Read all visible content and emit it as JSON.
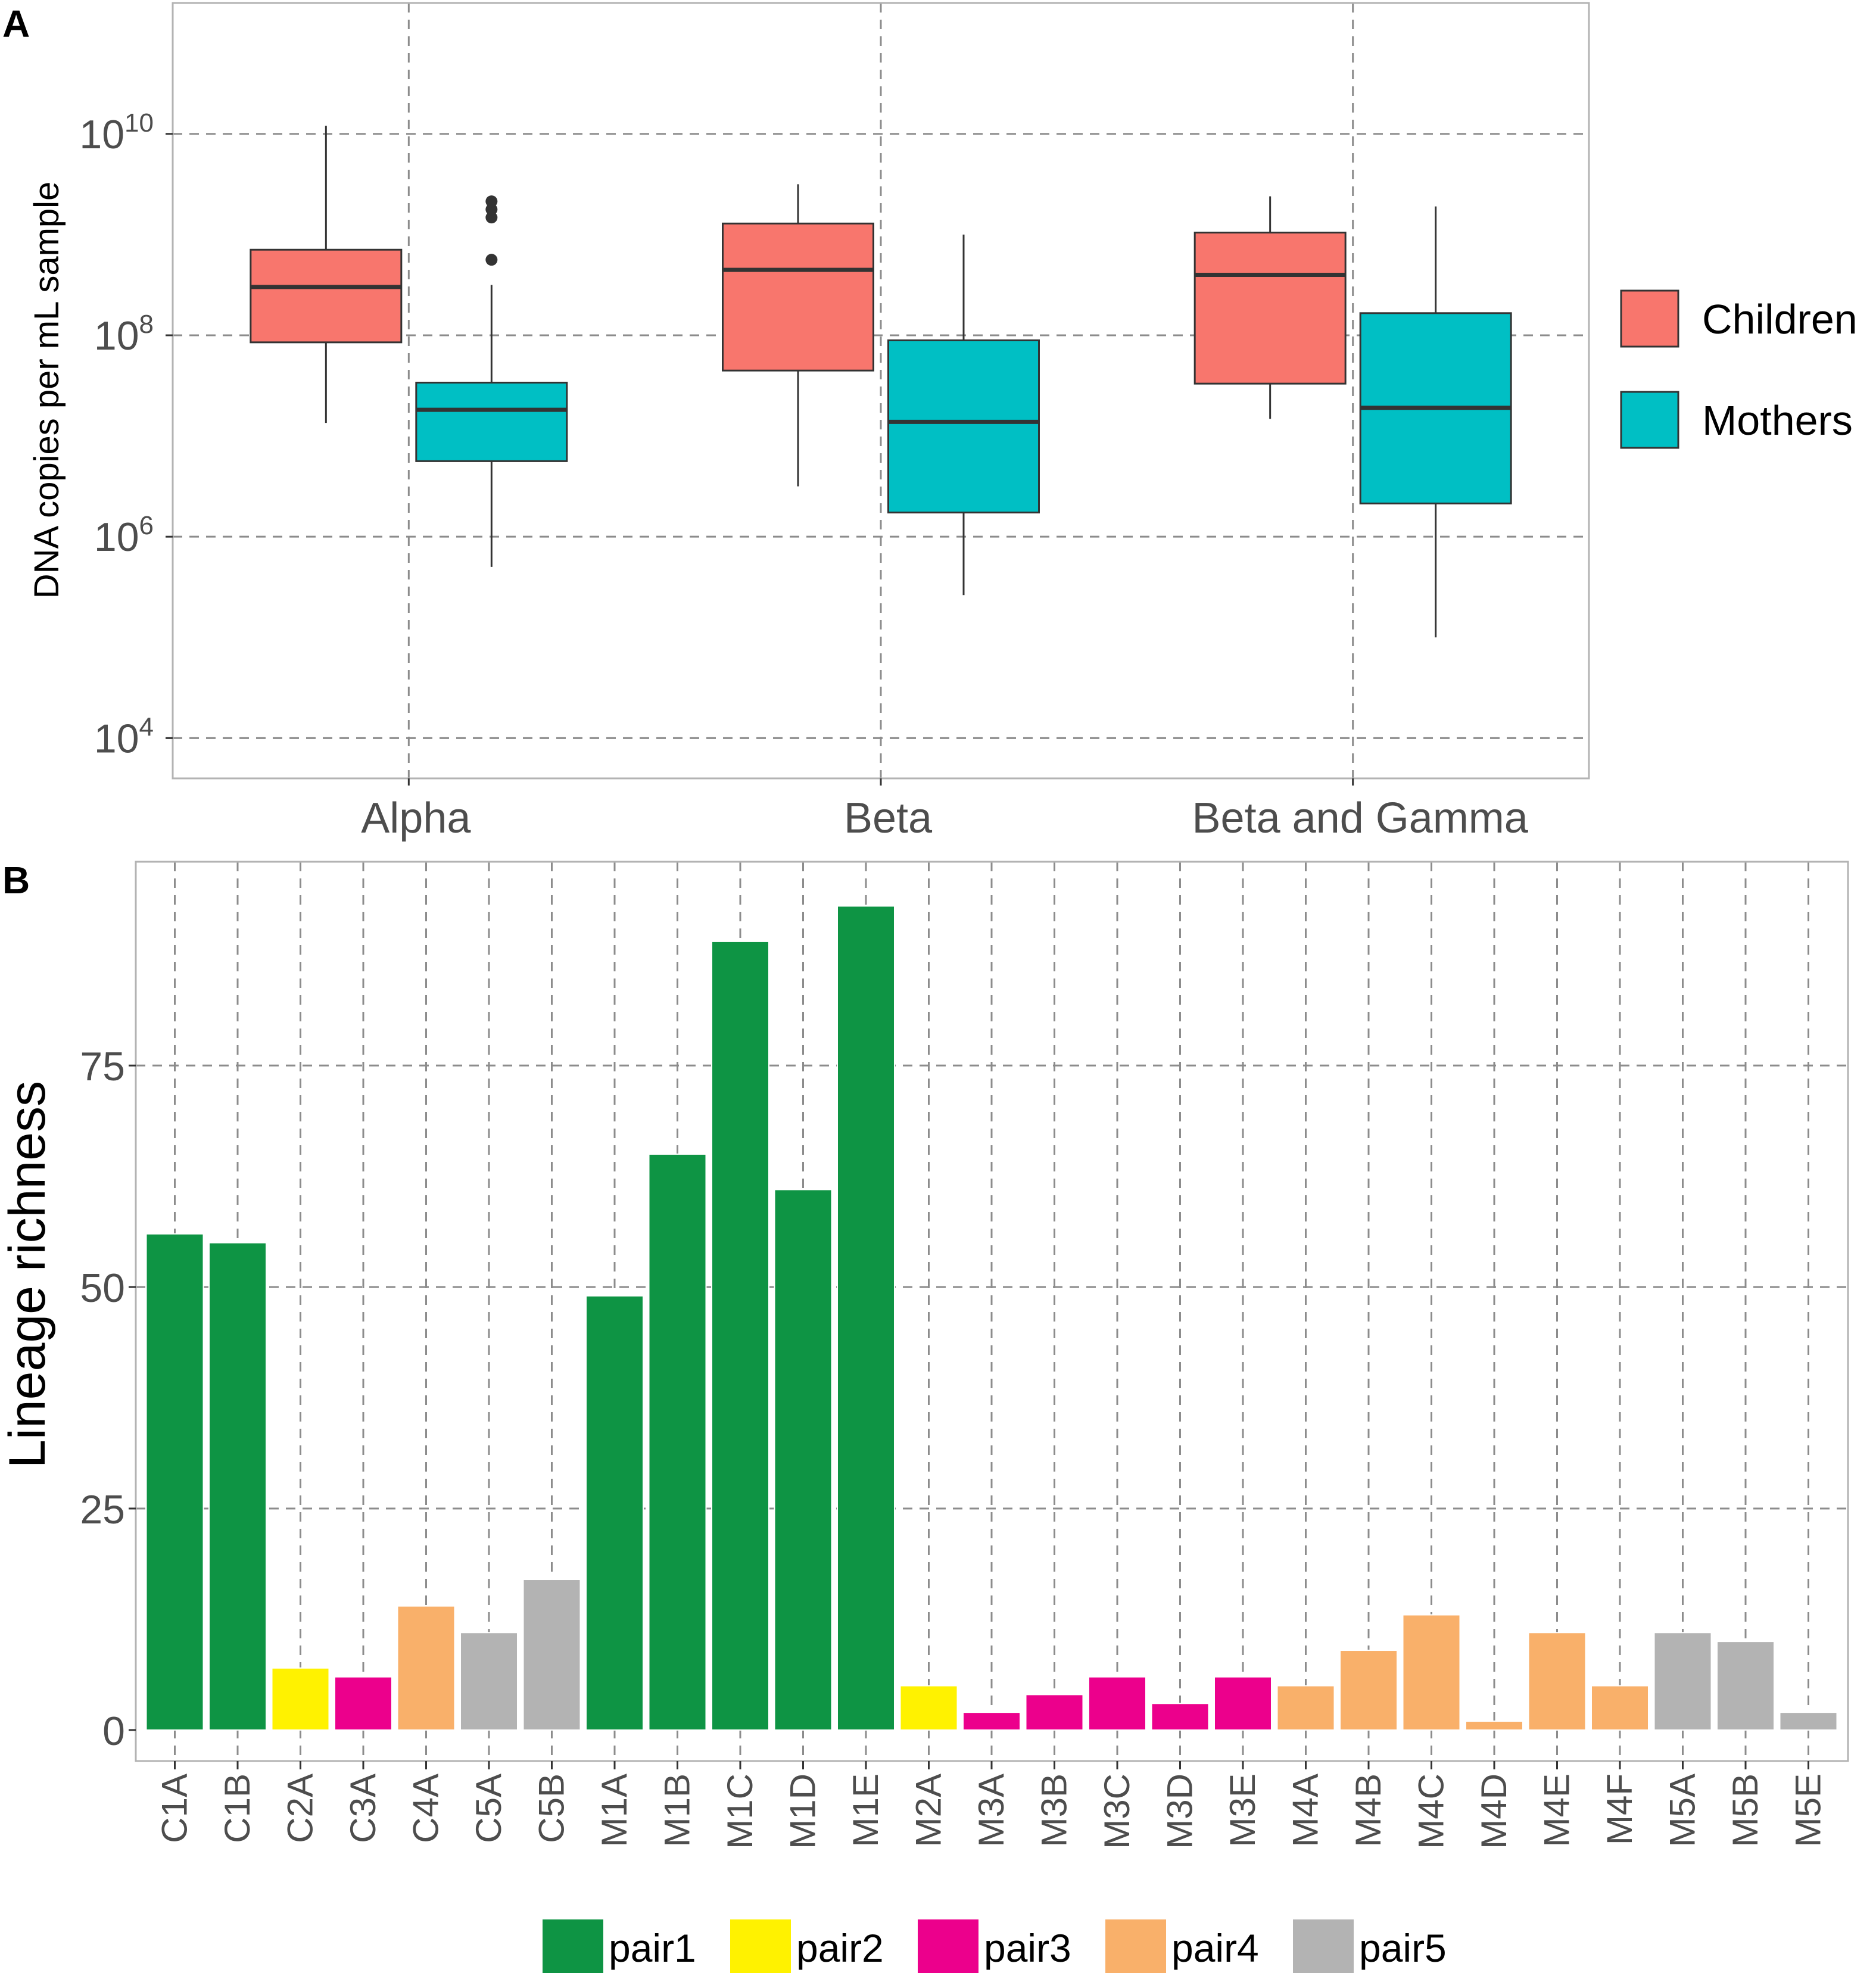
{
  "chart_data": [
    {
      "type": "box",
      "panel": "A",
      "ylabel": "DNA copies per mL sample",
      "yscale": "log10",
      "ylim": [
        3.6,
        11.3
      ],
      "yticks": [
        {
          "value": 4,
          "base": "10",
          "exp": "4"
        },
        {
          "value": 6,
          "base": "10",
          "exp": "6"
        },
        {
          "value": 8,
          "base": "10",
          "exp": "8"
        },
        {
          "value": 10,
          "base": "10",
          "exp": "10"
        }
      ],
      "categories": [
        "Alpha",
        "Beta",
        "Beta and Gamma"
      ],
      "legend": {
        "position": "right",
        "items": [
          {
            "label": "Children",
            "color": "#F8766D"
          },
          {
            "label": "Mothers",
            "color": "#00BFC4"
          }
        ]
      },
      "series": [
        {
          "name": "Children",
          "color": "#F8766D",
          "boxes": [
            {
              "category": "Alpha",
              "whisker_low": 7.13,
              "q1": 7.93,
              "median": 8.48,
              "q3": 8.85,
              "whisker_high": 10.08,
              "outliers": []
            },
            {
              "category": "Beta",
              "whisker_low": 6.5,
              "q1": 7.65,
              "median": 8.65,
              "q3": 9.11,
              "whisker_high": 9.5,
              "outliers": []
            },
            {
              "category": "Beta and Gamma",
              "whisker_low": 7.17,
              "q1": 7.52,
              "median": 8.6,
              "q3": 9.02,
              "whisker_high": 9.38,
              "outliers": []
            }
          ]
        },
        {
          "name": "Mothers",
          "color": "#00BFC4",
          "boxes": [
            {
              "category": "Alpha",
              "whisker_low": 5.7,
              "q1": 6.75,
              "median": 7.26,
              "q3": 7.53,
              "whisker_high": 8.5,
              "outliers": [
                8.75,
                9.17,
                9.25,
                9.33
              ]
            },
            {
              "category": "Beta",
              "whisker_low": 5.42,
              "q1": 6.24,
              "median": 7.14,
              "q3": 7.95,
              "whisker_high": 9.0,
              "outliers": []
            },
            {
              "category": "Beta and Gamma",
              "whisker_low": 5.0,
              "q1": 6.33,
              "median": 7.28,
              "q3": 8.22,
              "whisker_high": 9.28,
              "outliers": []
            }
          ]
        }
      ]
    },
    {
      "type": "bar",
      "panel": "B",
      "ylabel": "Lineage richness",
      "ylim": [
        -3.5,
        98
      ],
      "yticks": [
        0,
        25,
        50,
        75
      ],
      "categories": [
        "C1A",
        "C1B",
        "C2A",
        "C3A",
        "C4A",
        "C5A",
        "C5B",
        "M1A",
        "M1B",
        "M1C",
        "M1D",
        "M1E",
        "M2A",
        "M3A",
        "M3B",
        "M3C",
        "M3D",
        "M3E",
        "M4A",
        "M4B",
        "M4C",
        "M4D",
        "M4E",
        "M4F",
        "M5A",
        "M5B",
        "M5E"
      ],
      "values": [
        56,
        55,
        7,
        6,
        14,
        11,
        17,
        49,
        65,
        89,
        61,
        93,
        5,
        2,
        4,
        6,
        3,
        6,
        5,
        9,
        13,
        1,
        11,
        5,
        11,
        10,
        2
      ],
      "groups": [
        "pair1",
        "pair1",
        "pair2",
        "pair3",
        "pair4",
        "pair5",
        "pair5",
        "pair1",
        "pair1",
        "pair1",
        "pair1",
        "pair1",
        "pair2",
        "pair3",
        "pair3",
        "pair3",
        "pair3",
        "pair3",
        "pair4",
        "pair4",
        "pair4",
        "pair4",
        "pair4",
        "pair4",
        "pair5",
        "pair5",
        "pair5"
      ],
      "legend": {
        "position": "bottom",
        "items": [
          {
            "label": "pair1",
            "color": "#0E9444"
          },
          {
            "label": "pair2",
            "color": "#FFF200"
          },
          {
            "label": "pair3",
            "color": "#EC008C"
          },
          {
            "label": "pair4",
            "color": "#F9B06A"
          },
          {
            "label": "pair5",
            "color": "#B3B3B3"
          }
        ]
      }
    }
  ],
  "labels": {
    "panel_a": "A",
    "panel_b": "B"
  }
}
